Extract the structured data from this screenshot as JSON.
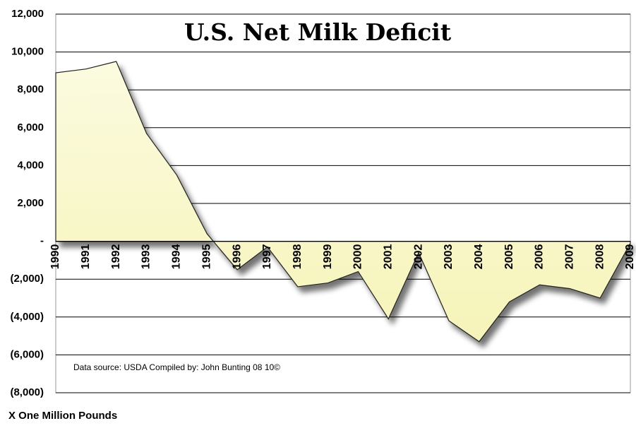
{
  "chart_data": {
    "type": "area",
    "title": "U.S. Net Milk Deficit",
    "annotation": "Data source: USDA   Compiled by: John Bunting 08 10©",
    "y_label": "X One Million Pounds",
    "categories": [
      "1990",
      "1991",
      "1992",
      "1993",
      "1994",
      "1995",
      "1996",
      "1997",
      "1998",
      "1999",
      "2000",
      "2001",
      "2002",
      "2003",
      "2004",
      "2005",
      "2006",
      "2007",
      "2008",
      "2009"
    ],
    "values": [
      8900,
      9100,
      9500,
      5700,
      3500,
      400,
      -1500,
      -300,
      -2400,
      -2200,
      -1600,
      -4100,
      -600,
      -4200,
      -5300,
      -3200,
      -2300,
      -2500,
      -3000,
      -100
    ],
    "color": "#f8f6c4",
    "ylim": [
      -8000,
      12000
    ],
    "yticks": [
      {
        "value": -8000,
        "label": "(8,000)"
      },
      {
        "value": -6000,
        "label": "(6,000)"
      },
      {
        "value": -4000,
        "label": "(4,000)"
      },
      {
        "value": -2000,
        "label": "(2,000)"
      },
      {
        "value": 0,
        "label": "-"
      },
      {
        "value": 2000,
        "label": "2,000"
      },
      {
        "value": 4000,
        "label": "4,000"
      },
      {
        "value": 6000,
        "label": "6,000"
      },
      {
        "value": 8000,
        "label": "8,000"
      },
      {
        "value": 10000,
        "label": "10,000"
      },
      {
        "value": 12000,
        "label": "12,000"
      }
    ],
    "grid": true
  }
}
